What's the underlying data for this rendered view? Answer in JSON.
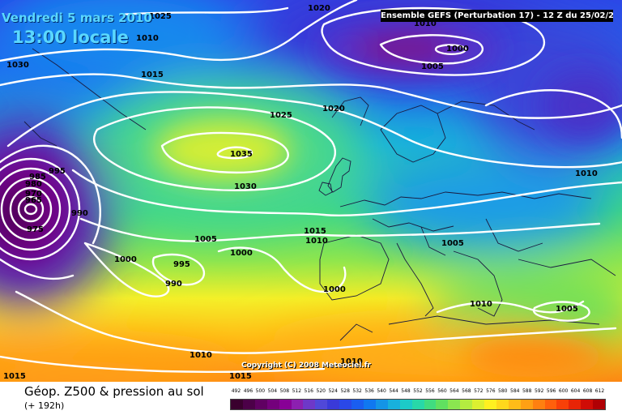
{
  "header": {
    "date_label": "Vendredi 5 mars 2010",
    "time_label": "13:00 locale",
    "model_info": "Ensemble GEFS (Perturbation 17)  -  12 Z du 25/02/2010"
  },
  "copyright": "Copyright (C) 2008 Meteociel.fr",
  "footer": {
    "field_title": "Géop. Z500 & pression au sol",
    "lead_time": "(+ 192h)"
  },
  "legend": {
    "values": [
      "492",
      "496",
      "500",
      "504",
      "508",
      "512",
      "516",
      "520",
      "524",
      "528",
      "532",
      "536",
      "540",
      "544",
      "548",
      "552",
      "556",
      "560",
      "564",
      "568",
      "572",
      "576",
      "580",
      "584",
      "588",
      "592",
      "596",
      "600",
      "604",
      "608",
      "612"
    ],
    "colors": [
      "#3a002e",
      "#4c0048",
      "#600062",
      "#74007c",
      "#880096",
      "#8c20b0",
      "#6e38c8",
      "#5048d8",
      "#3a3ad8",
      "#2a48e8",
      "#1a5ef0",
      "#1078f0",
      "#1494e6",
      "#18b0dc",
      "#1ccac8",
      "#28d8a8",
      "#40dc80",
      "#60e060",
      "#8ae650",
      "#b4ec40",
      "#dcf030",
      "#fff020",
      "#ffd81c",
      "#ffbc18",
      "#ffa014",
      "#ff8010",
      "#ff600c",
      "#f84008",
      "#e82406",
      "#d00c06",
      "#b00004"
    ]
  },
  "map": {
    "pressure_labels": [
      {
        "text": "1025"
      },
      {
        "text": "1020"
      },
      {
        "text": "1010"
      },
      {
        "text": "1010"
      },
      {
        "text": "1030"
      },
      {
        "text": "1000"
      },
      {
        "text": "1005"
      },
      {
        "text": "1015"
      },
      {
        "text": "1020"
      },
      {
        "text": "1025"
      },
      {
        "text": "1035"
      },
      {
        "text": "1030"
      },
      {
        "text": "995"
      },
      {
        "text": "985"
      },
      {
        "text": "980"
      },
      {
        "text": "970"
      },
      {
        "text": "965"
      },
      {
        "text": "975"
      },
      {
        "text": "990"
      },
      {
        "text": "1010"
      },
      {
        "text": "1005"
      },
      {
        "text": "1015"
      },
      {
        "text": "1010"
      },
      {
        "text": "1000"
      },
      {
        "text": "1000"
      },
      {
        "text": "995"
      },
      {
        "text": "990"
      },
      {
        "text": "1005"
      },
      {
        "text": "1000"
      },
      {
        "text": "1010"
      },
      {
        "text": "1005"
      },
      {
        "text": "1010"
      },
      {
        "text": "1015"
      },
      {
        "text": "1015"
      },
      {
        "text": "1010"
      }
    ]
  }
}
